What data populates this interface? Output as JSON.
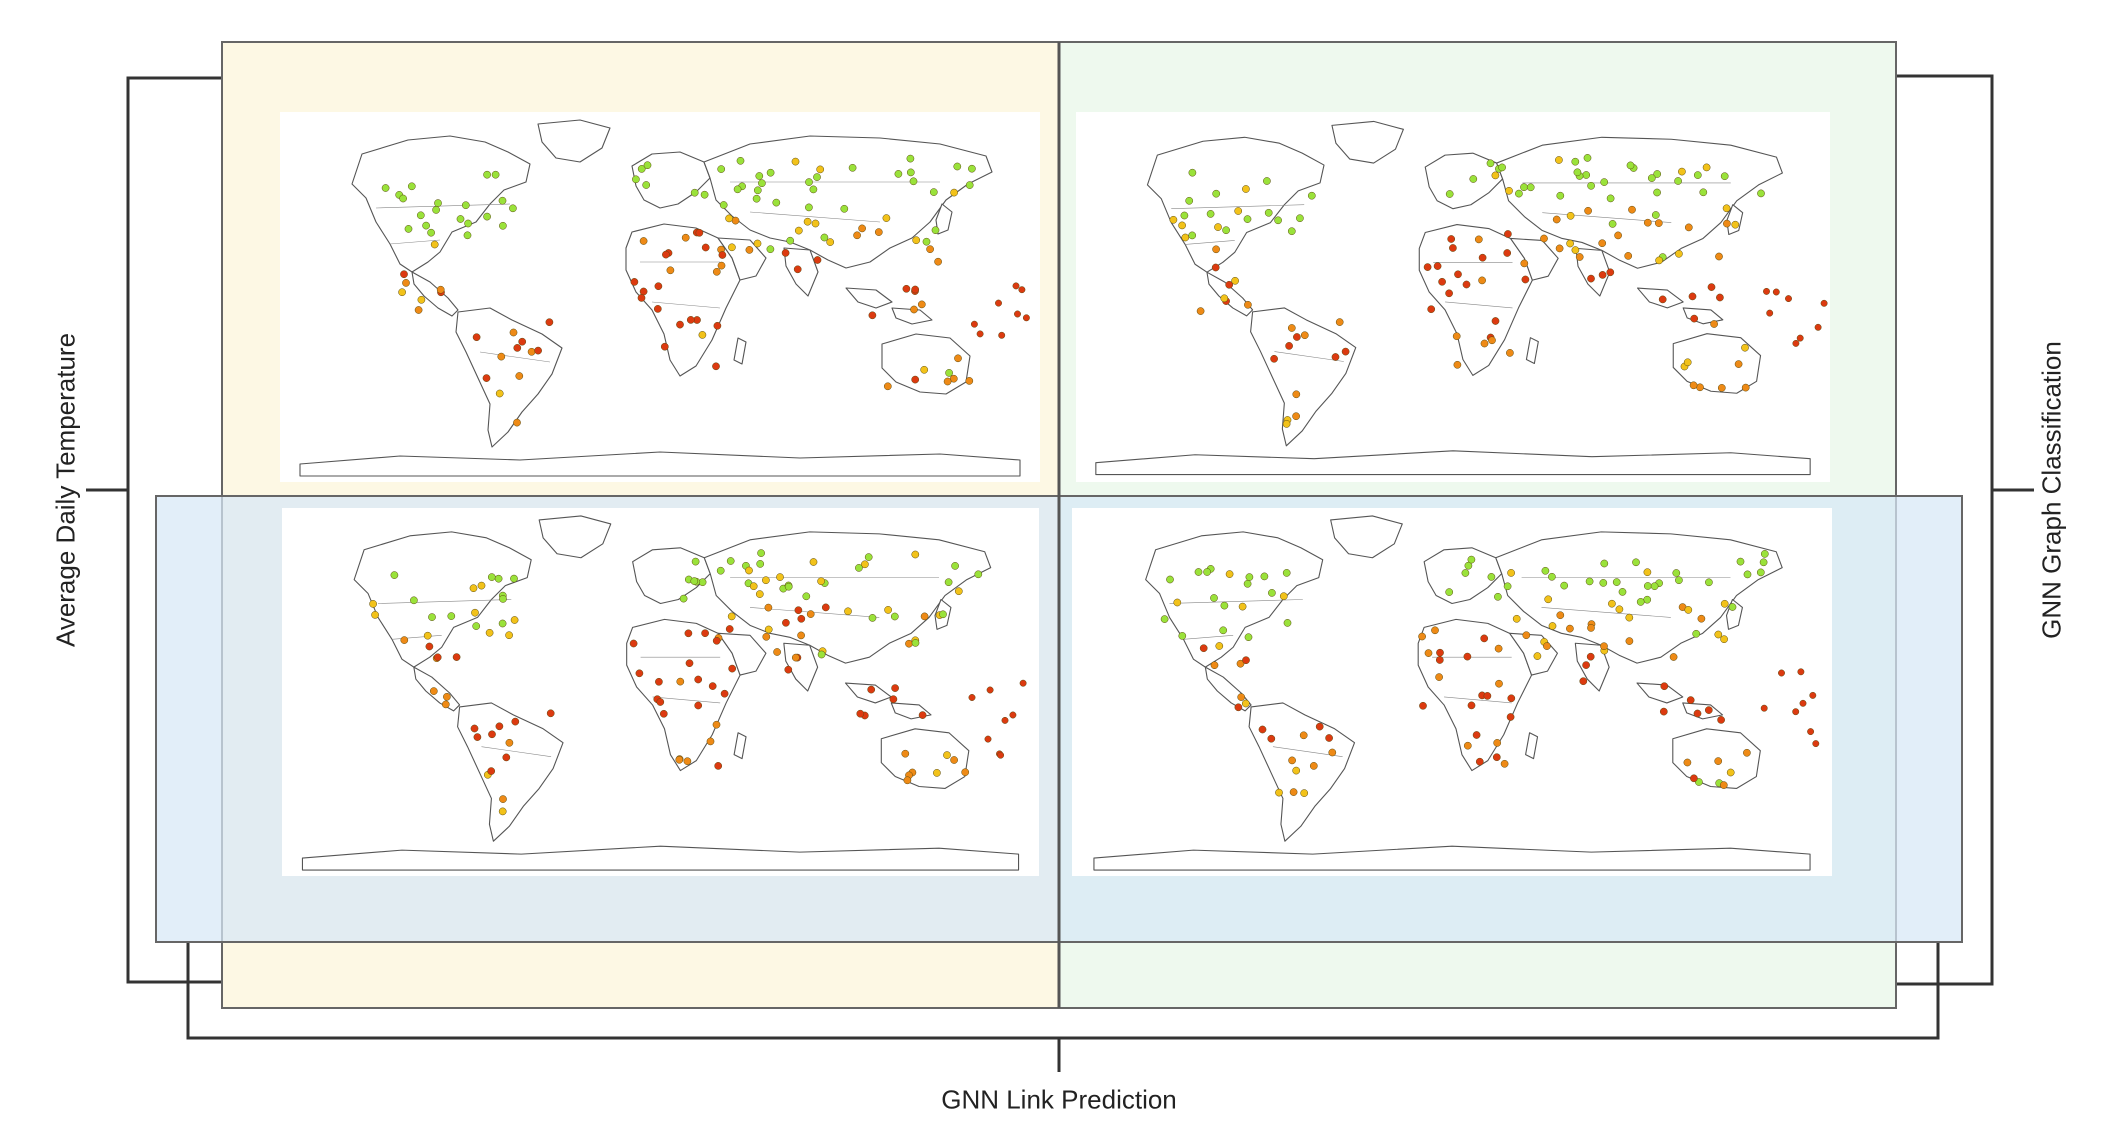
{
  "labels": {
    "left": "Average Daily Temperature",
    "right": "GNN Graph Classification",
    "bottom": "GNN Link Prediction"
  },
  "regions": {
    "avg_temp": "#fdf8e4",
    "graph_class": "#eef9ee",
    "link_pred": "#d7e8f7"
  },
  "legend_colors": {
    "cool": "#9ae23a",
    "mild": "#f2c21a",
    "warm": "#ee8a16",
    "hot": "#dc3a10"
  },
  "panels": [
    {
      "id": "top-left",
      "seed": 11,
      "hot_bias": 0.55
    },
    {
      "id": "top-right",
      "seed": 23,
      "hot_bias": 0.62
    },
    {
      "id": "bottom-left",
      "seed": 37,
      "hot_bias": 0.7
    },
    {
      "id": "bottom-right",
      "seed": 53,
      "hot_bias": 0.6
    }
  ]
}
